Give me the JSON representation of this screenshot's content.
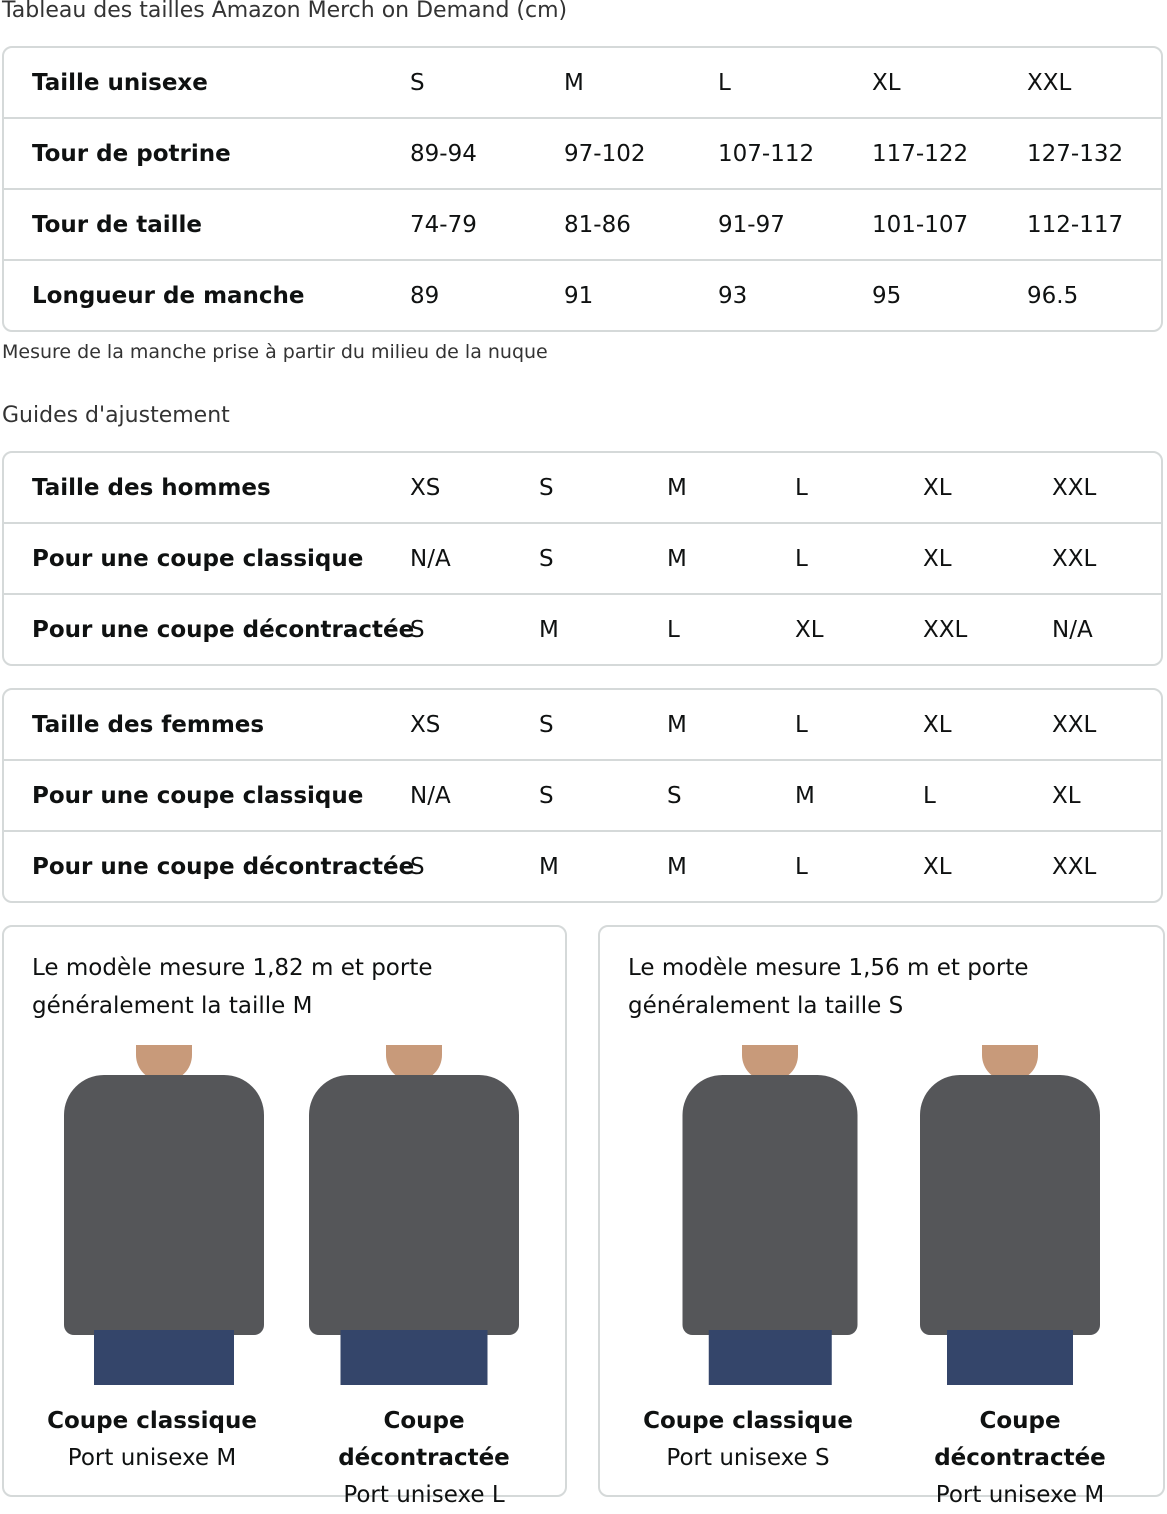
{
  "title": "Tableau des tailles Amazon Merch on Demand (cm)",
  "unisex_table": {
    "rows": [
      {
        "label": "Taille unisexe",
        "values": [
          "S",
          "M",
          "L",
          "XL",
          "XXL"
        ]
      },
      {
        "label": "Tour de potrine",
        "values": [
          "89-94",
          "97-102",
          "107-112",
          "117-122",
          "127-132"
        ]
      },
      {
        "label": "Tour de taille",
        "values": [
          "74-79",
          "81-86",
          "91-97",
          "101-107",
          "112-117"
        ]
      },
      {
        "label": "Longueur de manche",
        "values": [
          "89",
          "91",
          "93",
          "95",
          "96.5"
        ]
      }
    ]
  },
  "note": "Mesure de la manche prise à partir du milieu de la nuque",
  "fit_title": "Guides d'ajustement",
  "men_table": {
    "rows": [
      {
        "label": "Taille des hommes",
        "values": [
          "XS",
          "S",
          "M",
          "L",
          "XL",
          "XXL"
        ]
      },
      {
        "label": "Pour une coupe classique",
        "values": [
          "N/A",
          "S",
          "M",
          "L",
          "XL",
          "XXL"
        ]
      },
      {
        "label": "Pour une coupe décontractée",
        "values": [
          "S",
          "M",
          "L",
          "XL",
          "XXL",
          "N/A"
        ]
      }
    ]
  },
  "women_table": {
    "rows": [
      {
        "label": "Taille des femmes",
        "values": [
          "XS",
          "S",
          "M",
          "L",
          "XL",
          "XXL"
        ]
      },
      {
        "label": "Pour une coupe classique",
        "values": [
          "N/A",
          "S",
          "S",
          "M",
          "L",
          "XL"
        ]
      },
      {
        "label": "Pour une coupe décontractée",
        "values": [
          "S",
          "M",
          "M",
          "L",
          "XL",
          "XXL"
        ]
      }
    ]
  },
  "cards": [
    {
      "text": "Le modèle mesure 1,82 m et porte généralement la taille M",
      "items": [
        {
          "fit": "Coupe classique",
          "size": "Port unisexe M"
        },
        {
          "fit": "Coupe décontractée",
          "size": "Port unisexe L"
        }
      ]
    },
    {
      "text": "Le modèle mesure 1,56 m et porte généralement la taille S",
      "items": [
        {
          "fit": "Coupe classique",
          "size": "Port unisexe S"
        },
        {
          "fit": "Coupe décontractée",
          "size": "Port unisexe M"
        }
      ]
    }
  ]
}
